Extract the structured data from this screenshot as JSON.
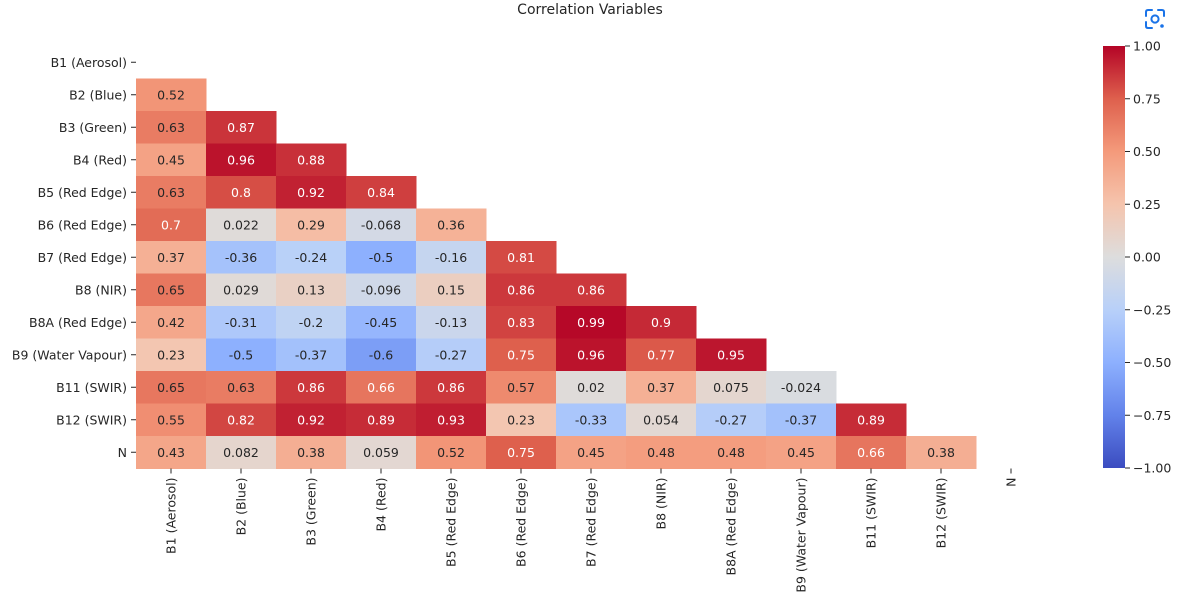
{
  "chart_data": {
    "type": "heatmap",
    "title": "Correlation Variables",
    "row_labels": [
      "B1 (Aerosol)",
      "B2 (Blue)",
      "B3 (Green)",
      "B4 (Red)",
      "B5 (Red Edge)",
      "B6 (Red Edge)",
      "B7 (Red Edge)",
      "B8 (NIR)",
      "B8A (Red Edge)",
      "B9 (Water Vapour)",
      "B11 (SWIR)",
      "B12 (SWIR)",
      "N"
    ],
    "col_labels": [
      "B1 (Aerosol)",
      "B2 (Blue)",
      "B3 (Green)",
      "B4 (Red)",
      "B5 (Red Edge)",
      "B6 (Red Edge)",
      "B7 (Red Edge)",
      "B8 (NIR)",
      "B8A (Red Edge)",
      "B9 (Water Vapour)",
      "B11 (SWIR)",
      "B12 (SWIR)",
      "N"
    ],
    "mask": "upper triangle including diagonal",
    "values": [
      [],
      [
        "0.52"
      ],
      [
        "0.63",
        "0.87"
      ],
      [
        "0.45",
        "0.96",
        "0.88"
      ],
      [
        "0.63",
        "0.8",
        "0.92",
        "0.84"
      ],
      [
        "0.7",
        "0.022",
        "0.29",
        "-0.068",
        "0.36"
      ],
      [
        "0.37",
        "-0.36",
        "-0.24",
        "-0.5",
        "-0.16",
        "0.81"
      ],
      [
        "0.65",
        "0.029",
        "0.13",
        "-0.096",
        "0.15",
        "0.86",
        "0.86"
      ],
      [
        "0.42",
        "-0.31",
        "-0.2",
        "-0.45",
        "-0.13",
        "0.83",
        "0.99",
        "0.9"
      ],
      [
        "0.23",
        "-0.5",
        "-0.37",
        "-0.6",
        "-0.27",
        "0.75",
        "0.96",
        "0.77",
        "0.95"
      ],
      [
        "0.65",
        "0.63",
        "0.86",
        "0.66",
        "0.86",
        "0.57",
        "0.02",
        "0.37",
        "0.075",
        "-0.024"
      ],
      [
        "0.55",
        "0.82",
        "0.92",
        "0.89",
        "0.93",
        "0.23",
        "-0.33",
        "0.054",
        "-0.27",
        "-0.37",
        "0.89"
      ],
      [
        "0.43",
        "0.082",
        "0.38",
        "0.059",
        "0.52",
        "0.75",
        "0.45",
        "0.48",
        "0.48",
        "0.45",
        "0.66",
        "0.38"
      ]
    ],
    "colormap": "coolwarm",
    "vmin": -1.0,
    "vmax": 1.0,
    "colorbar_ticks": [
      "1.00",
      "0.75",
      "0.50",
      "0.25",
      "0.00",
      "−0.25",
      "−0.50",
      "−0.75",
      "−1.00"
    ],
    "colorbar_tick_values": [
      1.0,
      0.75,
      0.5,
      0.25,
      0.0,
      -0.25,
      -0.5,
      -0.75,
      -1.0
    ]
  },
  "toolbar": {
    "lens_icon": "google-lens-icon"
  },
  "colors": {
    "dark_text": "#262626",
    "light_text": "#ffffff",
    "lens_blue": "#1a73e8"
  }
}
